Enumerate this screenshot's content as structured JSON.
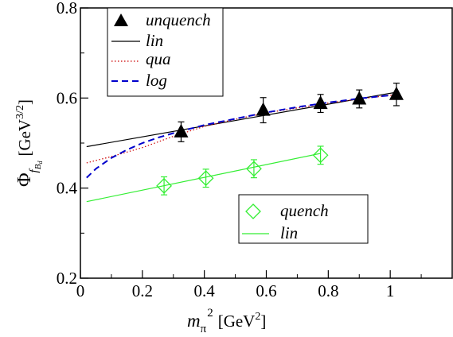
{
  "chart_data": {
    "type": "scatter",
    "xlim": [
      0,
      1.2
    ],
    "ylim": [
      0.2,
      0.8
    ],
    "x_ticks": [
      "0",
      "0.2",
      "0.4",
      "0.6",
      "0.8",
      "1"
    ],
    "y_ticks": [
      "0.2",
      "0.4",
      "0.6",
      "0.8"
    ],
    "xlabel": {
      "base": "m",
      "sub": "π",
      "sup": "2",
      "unit": "[GeV",
      "unit_sup": "2",
      "unit_close": "]"
    },
    "ylabel": {
      "base": "Φ",
      "sub": "f",
      "subsub": "B",
      "subsubsub": "d",
      "unit": "[GeV",
      "unit_sup": "3/2",
      "unit_close": "]"
    },
    "grid": false,
    "series": [
      {
        "name": "unquench",
        "kind": "points",
        "marker": "filled-triangle",
        "color": "#000000",
        "x": [
          0.325,
          0.59,
          0.775,
          0.9,
          1.02
        ],
        "y": [
          0.525,
          0.573,
          0.588,
          0.598,
          0.608
        ],
        "err": [
          0.022,
          0.028,
          0.02,
          0.02,
          0.025
        ]
      },
      {
        "name": "lin",
        "kind": "line",
        "style": "solid",
        "color": "#000000",
        "x": [
          0.02,
          1.02
        ],
        "y": [
          0.492,
          0.613
        ]
      },
      {
        "name": "qua",
        "kind": "line",
        "style": "dotted",
        "color": "#cc0000",
        "x": [
          0.02,
          0.1,
          0.2,
          0.3,
          0.4,
          0.5,
          0.6,
          0.7,
          0.8,
          0.9,
          1.0,
          1.02
        ],
        "y": [
          0.456,
          0.47,
          0.49,
          0.515,
          0.537,
          0.553,
          0.567,
          0.578,
          0.589,
          0.598,
          0.606,
          0.607
        ]
      },
      {
        "name": "log",
        "kind": "line",
        "style": "dashed",
        "color": "#0000cc",
        "x": [
          0.02,
          0.05,
          0.1,
          0.15,
          0.2,
          0.25,
          0.3,
          0.4,
          0.5,
          0.6,
          0.7,
          0.8,
          0.9,
          1.0,
          1.02
        ],
        "y": [
          0.423,
          0.443,
          0.467,
          0.485,
          0.5,
          0.512,
          0.522,
          0.54,
          0.554,
          0.568,
          0.58,
          0.59,
          0.599,
          0.606,
          0.607
        ]
      },
      {
        "name": "quench",
        "kind": "points",
        "marker": "open-diamond",
        "color": "#33ee33",
        "x": [
          0.27,
          0.405,
          0.56,
          0.775
        ],
        "y": [
          0.405,
          0.422,
          0.443,
          0.473
        ],
        "err": [
          0.02,
          0.02,
          0.02,
          0.02
        ]
      },
      {
        "name": "lin",
        "kind": "line",
        "style": "solid",
        "color": "#33ee33",
        "x": [
          0.02,
          0.775
        ],
        "y": [
          0.37,
          0.477
        ]
      }
    ],
    "legends": [
      {
        "entries": [
          "unquench",
          "lin",
          "qua",
          "log"
        ]
      },
      {
        "entries": [
          "quench",
          "lin"
        ]
      }
    ]
  }
}
